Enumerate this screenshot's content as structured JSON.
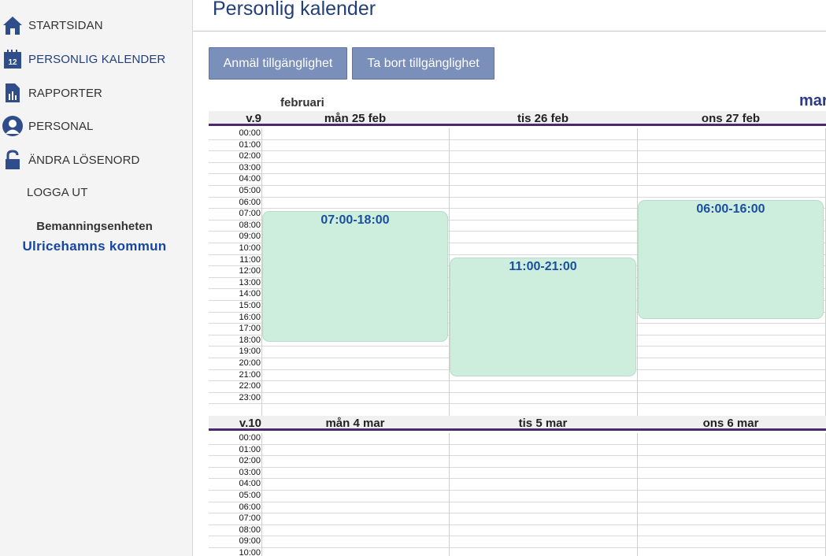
{
  "sidebar": {
    "items": [
      {
        "label": "STARTSIDAN",
        "icon": "home-icon"
      },
      {
        "label": "PERSONLIG KALENDER",
        "icon": "calendar-icon"
      },
      {
        "label": "RAPPORTER",
        "icon": "report-icon"
      },
      {
        "label": "PERSONAL",
        "icon": "person-icon"
      },
      {
        "label": "ÄNDRA LÖSENORD",
        "icon": "lock-icon"
      },
      {
        "label": "LOGGA UT",
        "icon": ""
      }
    ],
    "calendar_icon_day": "12",
    "org_unit": "Bemanningsenheten",
    "org_name": "Ulricehamns kommun"
  },
  "header": {
    "title": "Personlig kalender",
    "btn_add": "Anmäl tillgänglighet",
    "btn_remove": "Ta bort tillgänglighet"
  },
  "calendar": {
    "month_label": "februari",
    "next_month_label": "mar",
    "hours": [
      "00:00",
      "01:00",
      "02:00",
      "03:00",
      "04:00",
      "05:00",
      "06:00",
      "07:00",
      "08:00",
      "09:00",
      "10:00",
      "11:00",
      "12:00",
      "13:00",
      "14:00",
      "15:00",
      "16:00",
      "17:00",
      "18:00",
      "19:00",
      "20:00",
      "21:00",
      "22:00",
      "23:00"
    ],
    "weeks": [
      {
        "week": "v.9",
        "days": [
          "mån 25 feb",
          "tis 26 feb",
          "ons 27 feb"
        ],
        "events": [
          {
            "day": 0,
            "label": "07:00-18:00"
          },
          {
            "day": 1,
            "label": "11:00-21:00"
          },
          {
            "day": 2,
            "label": "06:00-16:00"
          }
        ]
      },
      {
        "week": "v.10",
        "days": [
          "mån 4 mar",
          "tis 5 mar",
          "ons 6 mar"
        ],
        "events": []
      }
    ]
  },
  "colors": {
    "accent": "#233f7a",
    "button": "#7a8fb9",
    "event_bg": "#cdeedd",
    "event_text": "#1a4fa0",
    "week_border": "#4a2a6e"
  }
}
